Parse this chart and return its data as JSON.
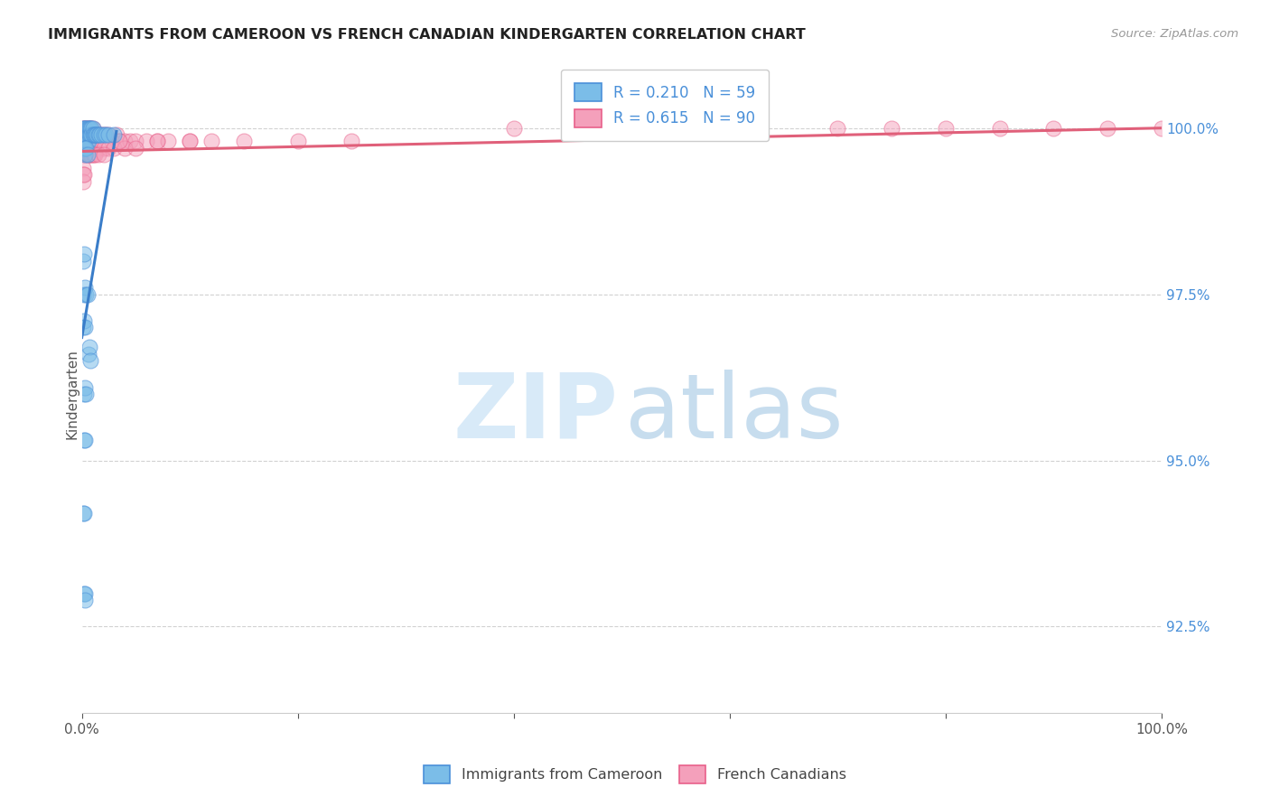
{
  "title": "IMMIGRANTS FROM CAMEROON VS FRENCH CANADIAN KINDERGARTEN CORRELATION CHART",
  "source": "Source: ZipAtlas.com",
  "ylabel": "Kindergarten",
  "ytick_labels": [
    "92.5%",
    "95.0%",
    "97.5%",
    "100.0%"
  ],
  "ytick_values": [
    0.925,
    0.95,
    0.975,
    1.0
  ],
  "xlim": [
    0.0,
    1.0
  ],
  "ylim": [
    0.912,
    1.008
  ],
  "legend_blue_label": "Immigrants from Cameroon",
  "legend_pink_label": "French Canadians",
  "blue_R": 0.21,
  "blue_N": 59,
  "pink_R": 0.615,
  "pink_N": 90,
  "blue_color": "#7bbde8",
  "pink_color": "#f4a0bb",
  "blue_edge_color": "#4a90d9",
  "pink_edge_color": "#e8608a",
  "blue_line_color": "#3a7dc9",
  "pink_line_color": "#e0607a",
  "background_color": "#ffffff",
  "grid_color": "#cccccc",
  "ytick_color": "#4a90d9",
  "blue_x": [
    0.001,
    0.002,
    0.002,
    0.003,
    0.003,
    0.004,
    0.004,
    0.005,
    0.005,
    0.005,
    0.006,
    0.006,
    0.006,
    0.007,
    0.007,
    0.008,
    0.008,
    0.009,
    0.009,
    0.01,
    0.01,
    0.011,
    0.012,
    0.013,
    0.014,
    0.015,
    0.016,
    0.018,
    0.02,
    0.022,
    0.025,
    0.03,
    0.002,
    0.003,
    0.003,
    0.004,
    0.005,
    0.006,
    0.007,
    0.008,
    0.001,
    0.002,
    0.002,
    0.003,
    0.004,
    0.005,
    0.001,
    0.002,
    0.003,
    0.002,
    0.003,
    0.004,
    0.002,
    0.003,
    0.001,
    0.002,
    0.002,
    0.003,
    0.003
  ],
  "blue_y": [
    1.0,
    1.0,
    0.999,
    1.0,
    0.999,
    1.0,
    0.999,
    1.0,
    0.999,
    0.998,
    1.0,
    0.999,
    0.998,
    1.0,
    0.999,
    1.0,
    0.999,
    1.0,
    0.999,
    1.0,
    0.999,
    0.999,
    0.999,
    0.999,
    0.999,
    0.999,
    0.999,
    0.999,
    0.999,
    0.999,
    0.999,
    0.999,
    0.997,
    0.997,
    0.996,
    0.997,
    0.996,
    0.966,
    0.967,
    0.965,
    0.98,
    0.981,
    0.975,
    0.976,
    0.975,
    0.975,
    0.97,
    0.971,
    0.97,
    0.96,
    0.961,
    0.96,
    0.953,
    0.953,
    0.942,
    0.942,
    0.93,
    0.93,
    0.929
  ],
  "pink_x": [
    0.001,
    0.002,
    0.002,
    0.003,
    0.003,
    0.003,
    0.004,
    0.004,
    0.005,
    0.005,
    0.005,
    0.006,
    0.006,
    0.007,
    0.007,
    0.008,
    0.008,
    0.009,
    0.009,
    0.01,
    0.01,
    0.011,
    0.012,
    0.013,
    0.015,
    0.016,
    0.018,
    0.02,
    0.022,
    0.025,
    0.028,
    0.032,
    0.035,
    0.04,
    0.045,
    0.05,
    0.06,
    0.07,
    0.08,
    0.1,
    0.12,
    0.15,
    0.2,
    0.25,
    0.003,
    0.004,
    0.005,
    0.006,
    0.007,
    0.008,
    0.009,
    0.01,
    0.011,
    0.012,
    0.015,
    0.02,
    0.025,
    0.03,
    0.04,
    0.05,
    0.002,
    0.003,
    0.004,
    0.005,
    0.006,
    0.007,
    0.008,
    0.009,
    0.01,
    0.011,
    0.012,
    0.015,
    0.02,
    0.035,
    0.07,
    0.1,
    0.4,
    0.5,
    0.6,
    0.7,
    0.75,
    0.8,
    0.85,
    0.9,
    0.95,
    1.0,
    0.001,
    0.001,
    0.001,
    0.002
  ],
  "pink_y": [
    1.0,
    1.0,
    0.999,
    1.0,
    0.999,
    0.998,
    1.0,
    0.999,
    1.0,
    0.999,
    0.998,
    1.0,
    0.999,
    1.0,
    0.999,
    1.0,
    0.999,
    1.0,
    0.999,
    1.0,
    0.999,
    0.999,
    0.999,
    0.999,
    0.999,
    0.999,
    0.999,
    0.999,
    0.999,
    0.999,
    0.998,
    0.999,
    0.998,
    0.998,
    0.998,
    0.998,
    0.998,
    0.998,
    0.998,
    0.998,
    0.998,
    0.998,
    0.998,
    0.998,
    0.997,
    0.997,
    0.997,
    0.997,
    0.997,
    0.997,
    0.997,
    0.997,
    0.997,
    0.997,
    0.997,
    0.997,
    0.997,
    0.997,
    0.997,
    0.997,
    0.996,
    0.996,
    0.996,
    0.996,
    0.996,
    0.996,
    0.996,
    0.996,
    0.996,
    0.996,
    0.996,
    0.996,
    0.996,
    0.998,
    0.998,
    0.998,
    1.0,
    1.0,
    1.0,
    1.0,
    1.0,
    1.0,
    1.0,
    1.0,
    1.0,
    1.0,
    0.994,
    0.993,
    0.992,
    0.993
  ],
  "blue_trendline_x": [
    0.0,
    0.032
  ],
  "blue_trendline_y_start": 0.9685,
  "blue_trendline_y_end": 0.9995,
  "pink_trendline_x": [
    0.0,
    1.0
  ],
  "pink_trendline_y_start": 0.9965,
  "pink_trendline_y_end": 1.0
}
